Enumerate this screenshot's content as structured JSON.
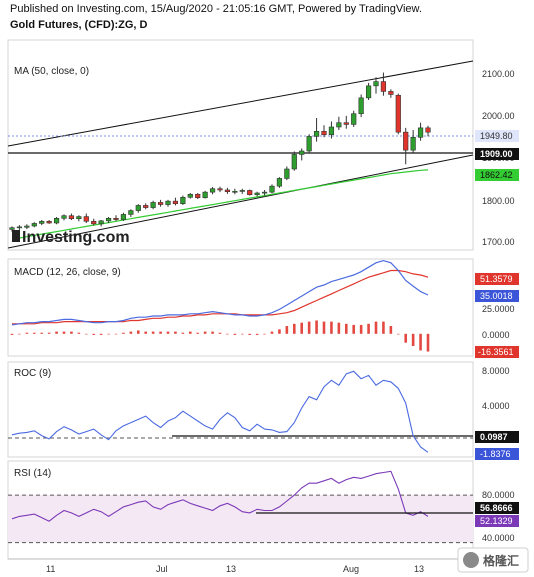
{
  "header": {
    "published": "Published on Investing.com, 15/Aug/2020 - 21:05:16 GMT, Powered by TradingView.",
    "instrument": "Gold Futures, (CFD):ZG, D"
  },
  "colors": {
    "up": "#2e9e2e",
    "down": "#e0352c",
    "ma": "#33cc33",
    "macd": "#4b6be0",
    "signal": "#e0352c",
    "roc": "#4b6be0",
    "rsi": "#7b39b8",
    "rsi_band": "#f4e8f4"
  },
  "x_axis": {
    "labels": [
      "11",
      "Jul",
      "13",
      "Aug",
      "13"
    ]
  },
  "price_panel": {
    "indicator_label": "MA (50, close, 0)",
    "axis_ticks": [
      "2100.00",
      "2000.00",
      "1900.00",
      "1800.00",
      "1700.00"
    ],
    "price_tag": "1949.80",
    "level_tag": "1909.00",
    "ma_tag": "1862.42",
    "watermark": "Investing.com"
  },
  "macd_panel": {
    "label": "MACD (12, 26, close, 9)",
    "axis_ticks": [
      "25.0000",
      "0.0000"
    ],
    "signal_tag": "51.3579",
    "macd_tag": "35.0018",
    "hist_tag": "-16.3561"
  },
  "roc_panel": {
    "label": "ROC (9)",
    "axis_ticks": [
      "8.0000",
      "4.0000"
    ],
    "level_tag": "0.0987",
    "value_tag": "-1.8376"
  },
  "rsi_panel": {
    "label": "RSI (14)",
    "axis_ticks": [
      "80.0000",
      "40.0000"
    ],
    "level_tag": "56.8666",
    "value_tag": "52.1329"
  },
  "badge": {
    "text": "格隆汇"
  },
  "chart_data": {
    "type": "candlestick",
    "candles": [
      {
        "o": 1723,
        "h": 1730,
        "l": 1718,
        "c": 1727
      },
      {
        "o": 1727,
        "h": 1733,
        "l": 1722,
        "c": 1729
      },
      {
        "o": 1728,
        "h": 1735,
        "l": 1724,
        "c": 1731
      },
      {
        "o": 1731,
        "h": 1740,
        "l": 1728,
        "c": 1737
      },
      {
        "o": 1737,
        "h": 1745,
        "l": 1733,
        "c": 1742
      },
      {
        "o": 1742,
        "h": 1745,
        "l": 1736,
        "c": 1738
      },
      {
        "o": 1738,
        "h": 1752,
        "l": 1735,
        "c": 1749
      },
      {
        "o": 1749,
        "h": 1758,
        "l": 1744,
        "c": 1755
      },
      {
        "o": 1755,
        "h": 1760,
        "l": 1745,
        "c": 1748
      },
      {
        "o": 1748,
        "h": 1756,
        "l": 1742,
        "c": 1753
      },
      {
        "o": 1753,
        "h": 1760,
        "l": 1738,
        "c": 1742
      },
      {
        "o": 1742,
        "h": 1748,
        "l": 1732,
        "c": 1736
      },
      {
        "o": 1736,
        "h": 1745,
        "l": 1730,
        "c": 1743
      },
      {
        "o": 1743,
        "h": 1752,
        "l": 1738,
        "c": 1749
      },
      {
        "o": 1749,
        "h": 1756,
        "l": 1742,
        "c": 1746
      },
      {
        "o": 1746,
        "h": 1762,
        "l": 1743,
        "c": 1758
      },
      {
        "o": 1758,
        "h": 1770,
        "l": 1752,
        "c": 1767
      },
      {
        "o": 1767,
        "h": 1782,
        "l": 1762,
        "c": 1779
      },
      {
        "o": 1779,
        "h": 1784,
        "l": 1770,
        "c": 1774
      },
      {
        "o": 1774,
        "h": 1790,
        "l": 1770,
        "c": 1786
      },
      {
        "o": 1786,
        "h": 1792,
        "l": 1776,
        "c": 1781
      },
      {
        "o": 1781,
        "h": 1792,
        "l": 1776,
        "c": 1789
      },
      {
        "o": 1789,
        "h": 1797,
        "l": 1779,
        "c": 1783
      },
      {
        "o": 1783,
        "h": 1802,
        "l": 1780,
        "c": 1798
      },
      {
        "o": 1798,
        "h": 1808,
        "l": 1795,
        "c": 1805
      },
      {
        "o": 1805,
        "h": 1808,
        "l": 1794,
        "c": 1797
      },
      {
        "o": 1797,
        "h": 1813,
        "l": 1795,
        "c": 1810
      },
      {
        "o": 1810,
        "h": 1822,
        "l": 1805,
        "c": 1818
      },
      {
        "o": 1818,
        "h": 1823,
        "l": 1810,
        "c": 1815
      },
      {
        "o": 1815,
        "h": 1820,
        "l": 1806,
        "c": 1811
      },
      {
        "o": 1811,
        "h": 1818,
        "l": 1805,
        "c": 1812
      },
      {
        "o": 1812,
        "h": 1818,
        "l": 1806,
        "c": 1814
      },
      {
        "o": 1814,
        "h": 1816,
        "l": 1802,
        "c": 1804
      },
      {
        "o": 1804,
        "h": 1811,
        "l": 1800,
        "c": 1808
      },
      {
        "o": 1808,
        "h": 1815,
        "l": 1802,
        "c": 1810
      },
      {
        "o": 1810,
        "h": 1828,
        "l": 1807,
        "c": 1824
      },
      {
        "o": 1824,
        "h": 1845,
        "l": 1820,
        "c": 1842
      },
      {
        "o": 1842,
        "h": 1870,
        "l": 1838,
        "c": 1864
      },
      {
        "o": 1864,
        "h": 1905,
        "l": 1860,
        "c": 1898
      },
      {
        "o": 1898,
        "h": 1912,
        "l": 1884,
        "c": 1906
      },
      {
        "o": 1906,
        "h": 1945,
        "l": 1900,
        "c": 1940
      },
      {
        "o": 1940,
        "h": 1983,
        "l": 1928,
        "c": 1952
      },
      {
        "o": 1952,
        "h": 1966,
        "l": 1938,
        "c": 1944
      },
      {
        "o": 1944,
        "h": 1975,
        "l": 1935,
        "c": 1962
      },
      {
        "o": 1962,
        "h": 1986,
        "l": 1955,
        "c": 1972
      },
      {
        "o": 1972,
        "h": 1988,
        "l": 1958,
        "c": 1968
      },
      {
        "o": 1968,
        "h": 2000,
        "l": 1962,
        "c": 1993
      },
      {
        "o": 1993,
        "h": 2038,
        "l": 1985,
        "c": 2030
      },
      {
        "o": 2030,
        "h": 2065,
        "l": 2025,
        "c": 2058
      },
      {
        "o": 2058,
        "h": 2078,
        "l": 2040,
        "c": 2068
      },
      {
        "o": 2068,
        "h": 2089,
        "l": 2035,
        "c": 2045
      },
      {
        "o": 2045,
        "h": 2050,
        "l": 2030,
        "c": 2038
      },
      {
        "o": 2036,
        "h": 2040,
        "l": 1945,
        "c": 1950
      },
      {
        "o": 1950,
        "h": 1960,
        "l": 1875,
        "c": 1908
      },
      {
        "o": 1908,
        "h": 1955,
        "l": 1902,
        "c": 1938
      },
      {
        "o": 1938,
        "h": 1972,
        "l": 1930,
        "c": 1960
      },
      {
        "o": 1960,
        "h": 1965,
        "l": 1940,
        "c": 1950
      }
    ],
    "ma50": [
      1700,
      1703,
      1706,
      1709,
      1712,
      1715,
      1718,
      1721,
      1724,
      1727,
      1730,
      1733,
      1736,
      1739,
      1742,
      1745,
      1748,
      1751,
      1754,
      1757,
      1760,
      1763,
      1766,
      1769,
      1772,
      1775,
      1778,
      1781,
      1784,
      1787,
      1790,
      1793,
      1796,
      1799,
      1802,
      1805,
      1808,
      1811,
      1814,
      1817,
      1820,
      1823,
      1826,
      1829,
      1832,
      1835,
      1838,
      1841,
      1844,
      1847,
      1850,
      1853,
      1855,
      1857,
      1859,
      1861,
      1862
    ],
    "macd": [
      8,
      9,
      10,
      10,
      11,
      11,
      12,
      13,
      13,
      12,
      11,
      10,
      10,
      11,
      11,
      12,
      14,
      15,
      15,
      16,
      16,
      17,
      17,
      17,
      18,
      18,
      19,
      20,
      19,
      18,
      17,
      17,
      16,
      16,
      17,
      19,
      22,
      26,
      30,
      34,
      38,
      42,
      44,
      47,
      49,
      51,
      53,
      56,
      60,
      64,
      66,
      64,
      57,
      48,
      43,
      38,
      35
    ],
    "signal": [
      9,
      9,
      9,
      9,
      10,
      10,
      10,
      11,
      11,
      11,
      11,
      11,
      11,
      11,
      11,
      11,
      12,
      12,
      13,
      14,
      14,
      15,
      15,
      16,
      16,
      17,
      17,
      18,
      18,
      18,
      18,
      17,
      17,
      17,
      17,
      17,
      18,
      19,
      21,
      24,
      27,
      30,
      33,
      36,
      39,
      42,
      45,
      48,
      51,
      53,
      55,
      57,
      57,
      56,
      54,
      53,
      51
    ],
    "histogram": [
      -1,
      0,
      1,
      1,
      1,
      1,
      2,
      2,
      2,
      1,
      0,
      -1,
      -1,
      0,
      0,
      1,
      2,
      3,
      2,
      2,
      2,
      2,
      2,
      1,
      2,
      1,
      2,
      2,
      1,
      0,
      -1,
      0,
      -1,
      -1,
      0,
      2,
      4,
      7,
      9,
      10,
      11,
      12,
      11,
      11,
      10,
      9,
      8,
      8,
      9,
      11,
      11,
      7,
      0,
      -8,
      -11,
      -15,
      -16
    ],
    "roc": [
      0.3,
      0.5,
      0.6,
      0.8,
      0.2,
      -0.2,
      0.7,
      1.3,
      0.9,
      0.4,
      0.7,
      1.0,
      0.3,
      -0.3,
      0.8,
      1.4,
      1.8,
      2.2,
      2.6,
      1.8,
      1.2,
      2.0,
      2.4,
      3.2,
      2.6,
      2.0,
      1.4,
      1.0,
      2.2,
      3.0,
      2.4,
      1.2,
      0.8,
      1.6,
      1.0,
      0.9,
      0.6,
      0.7,
      1.8,
      3.6,
      5.0,
      4.6,
      6.2,
      7.0,
      6.4,
      7.8,
      8.1,
      7.2,
      7.6,
      6.4,
      7.0,
      6.8,
      6.0,
      4.2,
      0.2,
      -1.2,
      -1.84
    ],
    "rsi": [
      50,
      52,
      53,
      54,
      51,
      48,
      53,
      57,
      55,
      52,
      55,
      58,
      56,
      52,
      56,
      60,
      62,
      64,
      65,
      60,
      58,
      62,
      64,
      66,
      63,
      61,
      59,
      57,
      61,
      63,
      60,
      56,
      55,
      58,
      57,
      57,
      60,
      65,
      70,
      76,
      80,
      80,
      82,
      84,
      80,
      83,
      85,
      84,
      86,
      88,
      89,
      90,
      75,
      55,
      53,
      56,
      52
    ],
    "rsi_lines": [
      70,
      30
    ],
    "price_range": [
      1675,
      2130
    ],
    "macd_range": [
      -20,
      62
    ],
    "roc_range": [
      -2.3,
      9.0
    ],
    "rsi_range": [
      17,
      97
    ],
    "price_levels": {
      "current": 1949.8,
      "horizontal": 1909.0,
      "ma": 1862.42
    },
    "macd_values": {
      "signal": 51.3579,
      "macd": 35.0018,
      "histogram": -16.3561
    },
    "roc_values": {
      "level": 0.0987,
      "roc": -1.8376
    },
    "rsi_values": {
      "level": 56.8666,
      "rsi": 52.1329
    }
  }
}
